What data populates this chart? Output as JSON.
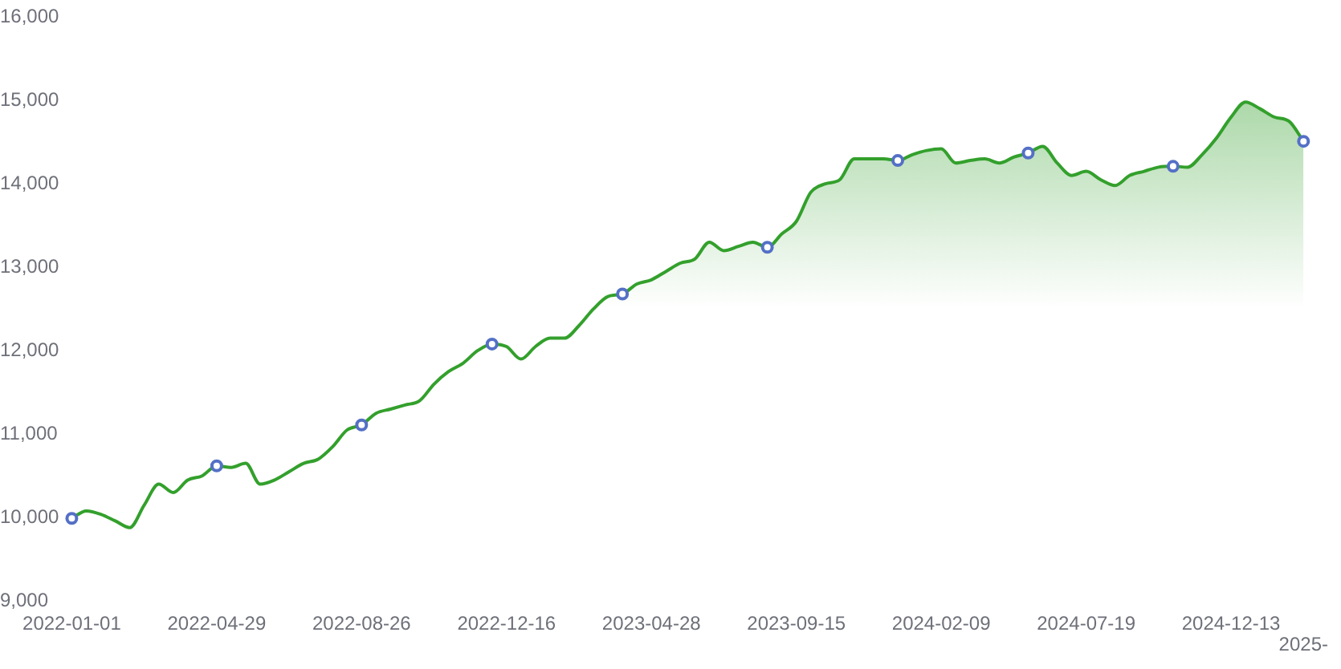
{
  "chart_data": {
    "type": "area",
    "legend": false,
    "grid": false,
    "categories": [
      "2022-01-01",
      null,
      null,
      null,
      null,
      null,
      null,
      null,
      null,
      null,
      "2022-04-29",
      null,
      null,
      null,
      null,
      null,
      null,
      null,
      null,
      null,
      "2022-08-26",
      null,
      null,
      null,
      null,
      null,
      null,
      null,
      null,
      null,
      "2022-12-16",
      null,
      null,
      null,
      null,
      null,
      null,
      null,
      null,
      null,
      "2023-04-28",
      null,
      null,
      null,
      null,
      null,
      null,
      null,
      null,
      null,
      "2023-09-15",
      null,
      null,
      null,
      null,
      null,
      null,
      null,
      null,
      null,
      "2024-02-09",
      null,
      null,
      null,
      null,
      null,
      null,
      null,
      null,
      null,
      "2024-07-19",
      null,
      null,
      null,
      null,
      null,
      null,
      null,
      null,
      null,
      "2024-12-13",
      null,
      null,
      null,
      null,
      "2025-"
    ],
    "ylim": [
      9000,
      16000
    ],
    "yticks": [
      {
        "value": 9000,
        "label": "9,000"
      },
      {
        "value": 10000,
        "label": "10,000"
      },
      {
        "value": 11000,
        "label": "11,000"
      },
      {
        "value": 12000,
        "label": "12,000"
      },
      {
        "value": 13000,
        "label": "13,000"
      },
      {
        "value": 14000,
        "label": "14,000"
      },
      {
        "value": 15000,
        "label": "15,000"
      },
      {
        "value": 16000,
        "label": "16,000"
      }
    ],
    "series": [
      {
        "color": "#33a02c",
        "values": [
          9990,
          10080,
          10040,
          9960,
          9880,
          10150,
          10400,
          10300,
          10450,
          10500,
          10620,
          10600,
          10650,
          10400,
          10450,
          10550,
          10650,
          10700,
          10850,
          11050,
          11110,
          11250,
          11300,
          11350,
          11400,
          11600,
          11750,
          11850,
          12000,
          12080,
          12050,
          11900,
          12050,
          12150,
          12150,
          12300,
          12500,
          12650,
          12680,
          12800,
          12850,
          12950,
          13050,
          13100,
          13300,
          13200,
          13250,
          13300,
          13240,
          13400,
          13550,
          13900,
          14000,
          14050,
          14300,
          14300,
          14300,
          14280,
          14350,
          14400,
          14420,
          14250,
          14280,
          14300,
          14250,
          14320,
          14370,
          14450,
          14250,
          14100,
          14150,
          14050,
          13980,
          14100,
          14150,
          14200,
          14210,
          14200,
          14350,
          14550,
          14800,
          14980,
          14900,
          14800,
          14750,
          14510
        ]
      },
      {
        "type": "scatter",
        "marker": "circle",
        "color": "#5470c6",
        "values": [
          9990,
          null,
          null,
          null,
          null,
          null,
          null,
          null,
          null,
          null,
          10620,
          null,
          null,
          null,
          null,
          null,
          null,
          null,
          null,
          null,
          11110,
          null,
          null,
          null,
          null,
          null,
          null,
          null,
          null,
          12080,
          null,
          null,
          null,
          null,
          null,
          null,
          null,
          null,
          12680,
          null,
          null,
          null,
          null,
          null,
          null,
          null,
          null,
          null,
          13240,
          null,
          null,
          null,
          null,
          null,
          null,
          null,
          null,
          14280,
          null,
          null,
          null,
          null,
          null,
          null,
          null,
          null,
          14370,
          null,
          null,
          null,
          null,
          null,
          null,
          null,
          null,
          null,
          14210,
          null,
          null,
          null,
          null,
          null,
          null,
          null,
          null,
          14510
        ]
      }
    ]
  }
}
